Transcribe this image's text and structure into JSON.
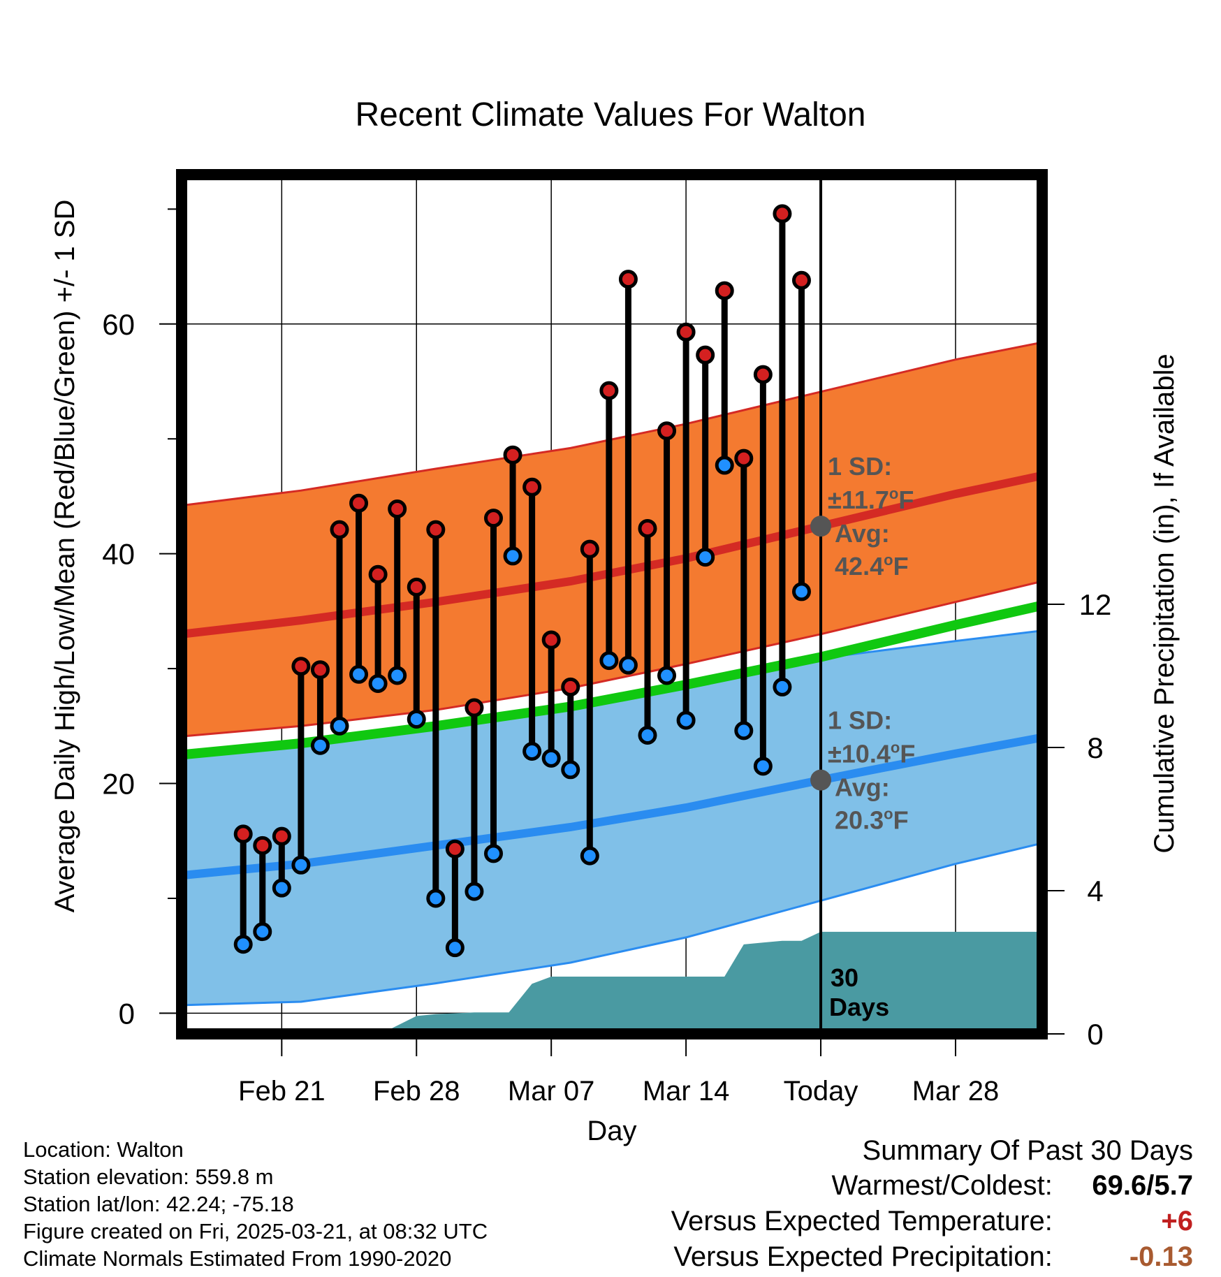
{
  "chart_data": {
    "type": "line",
    "title": "Recent Climate Values For Walton",
    "xlabel": "Day",
    "ylabel": "Average Daily High/Low/Mean (Red/Blue/Green) +/- 1 SD",
    "ylabel_right": "Cumulative Precipitation (in), If Available",
    "x_domain_days": [
      -33.2,
      11.5
    ],
    "ylim": [
      -1.8,
      73
    ],
    "ylim_right": [
      0,
      24
    ],
    "x_ticks": [
      {
        "day": -28,
        "label": "Feb 21"
      },
      {
        "day": -21,
        "label": "Feb 28"
      },
      {
        "day": -14,
        "label": "Mar 07"
      },
      {
        "day": -7,
        "label": "Mar 14"
      },
      {
        "day": 0,
        "label": "Today"
      },
      {
        "day": 7,
        "label": "Mar 28"
      }
    ],
    "y_ticks": [
      0,
      20,
      40,
      60
    ],
    "y_minor_ticks": [
      10,
      30,
      50,
      70
    ],
    "y_right_ticks": [
      0,
      4,
      8,
      12
    ],
    "normals": {
      "days": [
        -33.2,
        -27,
        -20,
        -13,
        -7,
        0,
        7,
        11.5
      ],
      "high_avg": [
        33.0,
        34.2,
        35.8,
        37.6,
        39.6,
        42.4,
        45.2,
        46.8
      ],
      "high_upper": [
        44.2,
        45.5,
        47.4,
        49.2,
        51.3,
        54.1,
        56.9,
        58.4
      ],
      "high_lower": [
        24.1,
        25.0,
        26.4,
        28.3,
        30.4,
        33.0,
        35.8,
        37.6
      ],
      "low_avg": [
        12.0,
        13.0,
        14.6,
        16.2,
        17.9,
        20.3,
        22.6,
        24.0
      ],
      "low_upper": [
        22.4,
        23.4,
        25.0,
        26.8,
        28.7,
        30.9,
        32.4,
        33.3
      ],
      "low_lower": [
        0.7,
        1.0,
        2.6,
        4.4,
        6.6,
        9.8,
        13.0,
        14.8
      ],
      "mean": [
        22.5,
        23.5,
        25.0,
        26.7,
        28.6,
        31.0,
        33.8,
        35.5
      ]
    },
    "series": [
      {
        "name": "Daily High",
        "color": "#d42020",
        "days": [
          -30,
          -29,
          -28,
          -27,
          -26,
          -25,
          -24,
          -23,
          -22,
          -21,
          -20,
          -19,
          -18,
          -17,
          -16,
          -15,
          -14,
          -13,
          -12,
          -11,
          -10,
          -9,
          -8,
          -7,
          -6,
          -5,
          -4,
          -3,
          -2,
          -1
        ],
        "values": [
          15.6,
          14.6,
          15.4,
          30.2,
          29.9,
          42.1,
          44.4,
          38.2,
          43.9,
          37.1,
          42.1,
          14.3,
          26.6,
          43.1,
          48.6,
          45.8,
          32.5,
          28.4,
          40.4,
          54.2,
          63.9,
          42.2,
          50.7,
          59.3,
          57.3,
          62.9,
          48.3,
          55.6,
          69.6,
          63.8
        ]
      },
      {
        "name": "Daily Low",
        "color": "#2090ff",
        "days": [
          -30,
          -29,
          -28,
          -27,
          -26,
          -25,
          -24,
          -23,
          -22,
          -21,
          -20,
          -19,
          -18,
          -17,
          -16,
          -15,
          -14,
          -13,
          -12,
          -11,
          -10,
          -9,
          -8,
          -7,
          -6,
          -5,
          -4,
          -3,
          -2,
          -1
        ],
        "values": [
          6.0,
          7.1,
          10.9,
          12.9,
          23.3,
          25.0,
          29.5,
          28.7,
          29.4,
          25.6,
          10.0,
          5.7,
          10.6,
          13.9,
          39.8,
          22.8,
          22.2,
          21.2,
          13.7,
          30.7,
          30.3,
          24.2,
          29.4,
          25.5,
          39.7,
          47.7,
          24.6,
          21.5,
          28.4,
          36.7
        ]
      },
      {
        "name": "Cumulative Precipitation",
        "color": "#4a9aa2",
        "days": [
          -33.2,
          -26.8,
          -26.0,
          -24.6,
          -24.0,
          -23.0,
          -22.3,
          -21.0,
          -20.0,
          -18.0,
          -17.0,
          -16.2,
          -15.0,
          -14.0,
          -13.0,
          -8.0,
          -7.0,
          -6.0,
          -5.0,
          -4.0,
          -3.0,
          -2.0,
          -1.0,
          0,
          11.5
        ],
        "values": [
          0,
          0,
          0,
          0.1,
          0.1,
          0.15,
          0.15,
          0.5,
          0.55,
          0.6,
          0.6,
          0.6,
          1.4,
          1.6,
          1.6,
          1.6,
          1.6,
          1.6,
          1.6,
          2.5,
          2.55,
          2.6,
          2.6,
          2.85,
          2.85
        ]
      }
    ],
    "annotations": {
      "high_sd_label": "1 SD:",
      "high_sd_value": "±11.7",
      "high_sd_unit": "F",
      "high_avg_label": "Avg:",
      "high_avg_value": "42.4",
      "high_avg_unit": "F",
      "high_avg_point": 42.4,
      "low_sd_label": "1 SD:",
      "low_sd_value": "±10.4",
      "low_sd_unit": "F",
      "low_avg_label": "Avg:",
      "low_avg_value": "20.3",
      "low_avg_unit": "F",
      "low_avg_point": 20.3,
      "degree_symbol": "o",
      "today_label_line1": "30",
      "today_label_line2": "Days"
    },
    "colors": {
      "high_band": "#f47a30",
      "high_line": "#d42a24",
      "low_band": "#80c0e8",
      "low_line": "#2a8cf0",
      "mean_line": "#10c810",
      "precip": "#4a9aa2",
      "annotation_text": "#555555",
      "avg_marker": "#555555"
    }
  },
  "info": {
    "location": "Location: Walton",
    "elevation": "Station elevation: 559.8 m",
    "latlon": "Station lat/lon: 42.24; -75.18",
    "created": "Figure created on Fri, 2025-03-21, at 08:32 UTC",
    "normals": "Climate Normals Estimated From 1990-2020"
  },
  "summary": {
    "title": "Summary Of Past 30 Days",
    "warmest_label": "Warmest/Coldest:",
    "warmest_value": "69.6/5.7",
    "temp_label": "Versus Expected Temperature:",
    "temp_value": "+6",
    "temp_color": "#c02020",
    "precip_label": "Versus Expected Precipitation:",
    "precip_value": "-0.13",
    "precip_color": "#a85a30"
  }
}
